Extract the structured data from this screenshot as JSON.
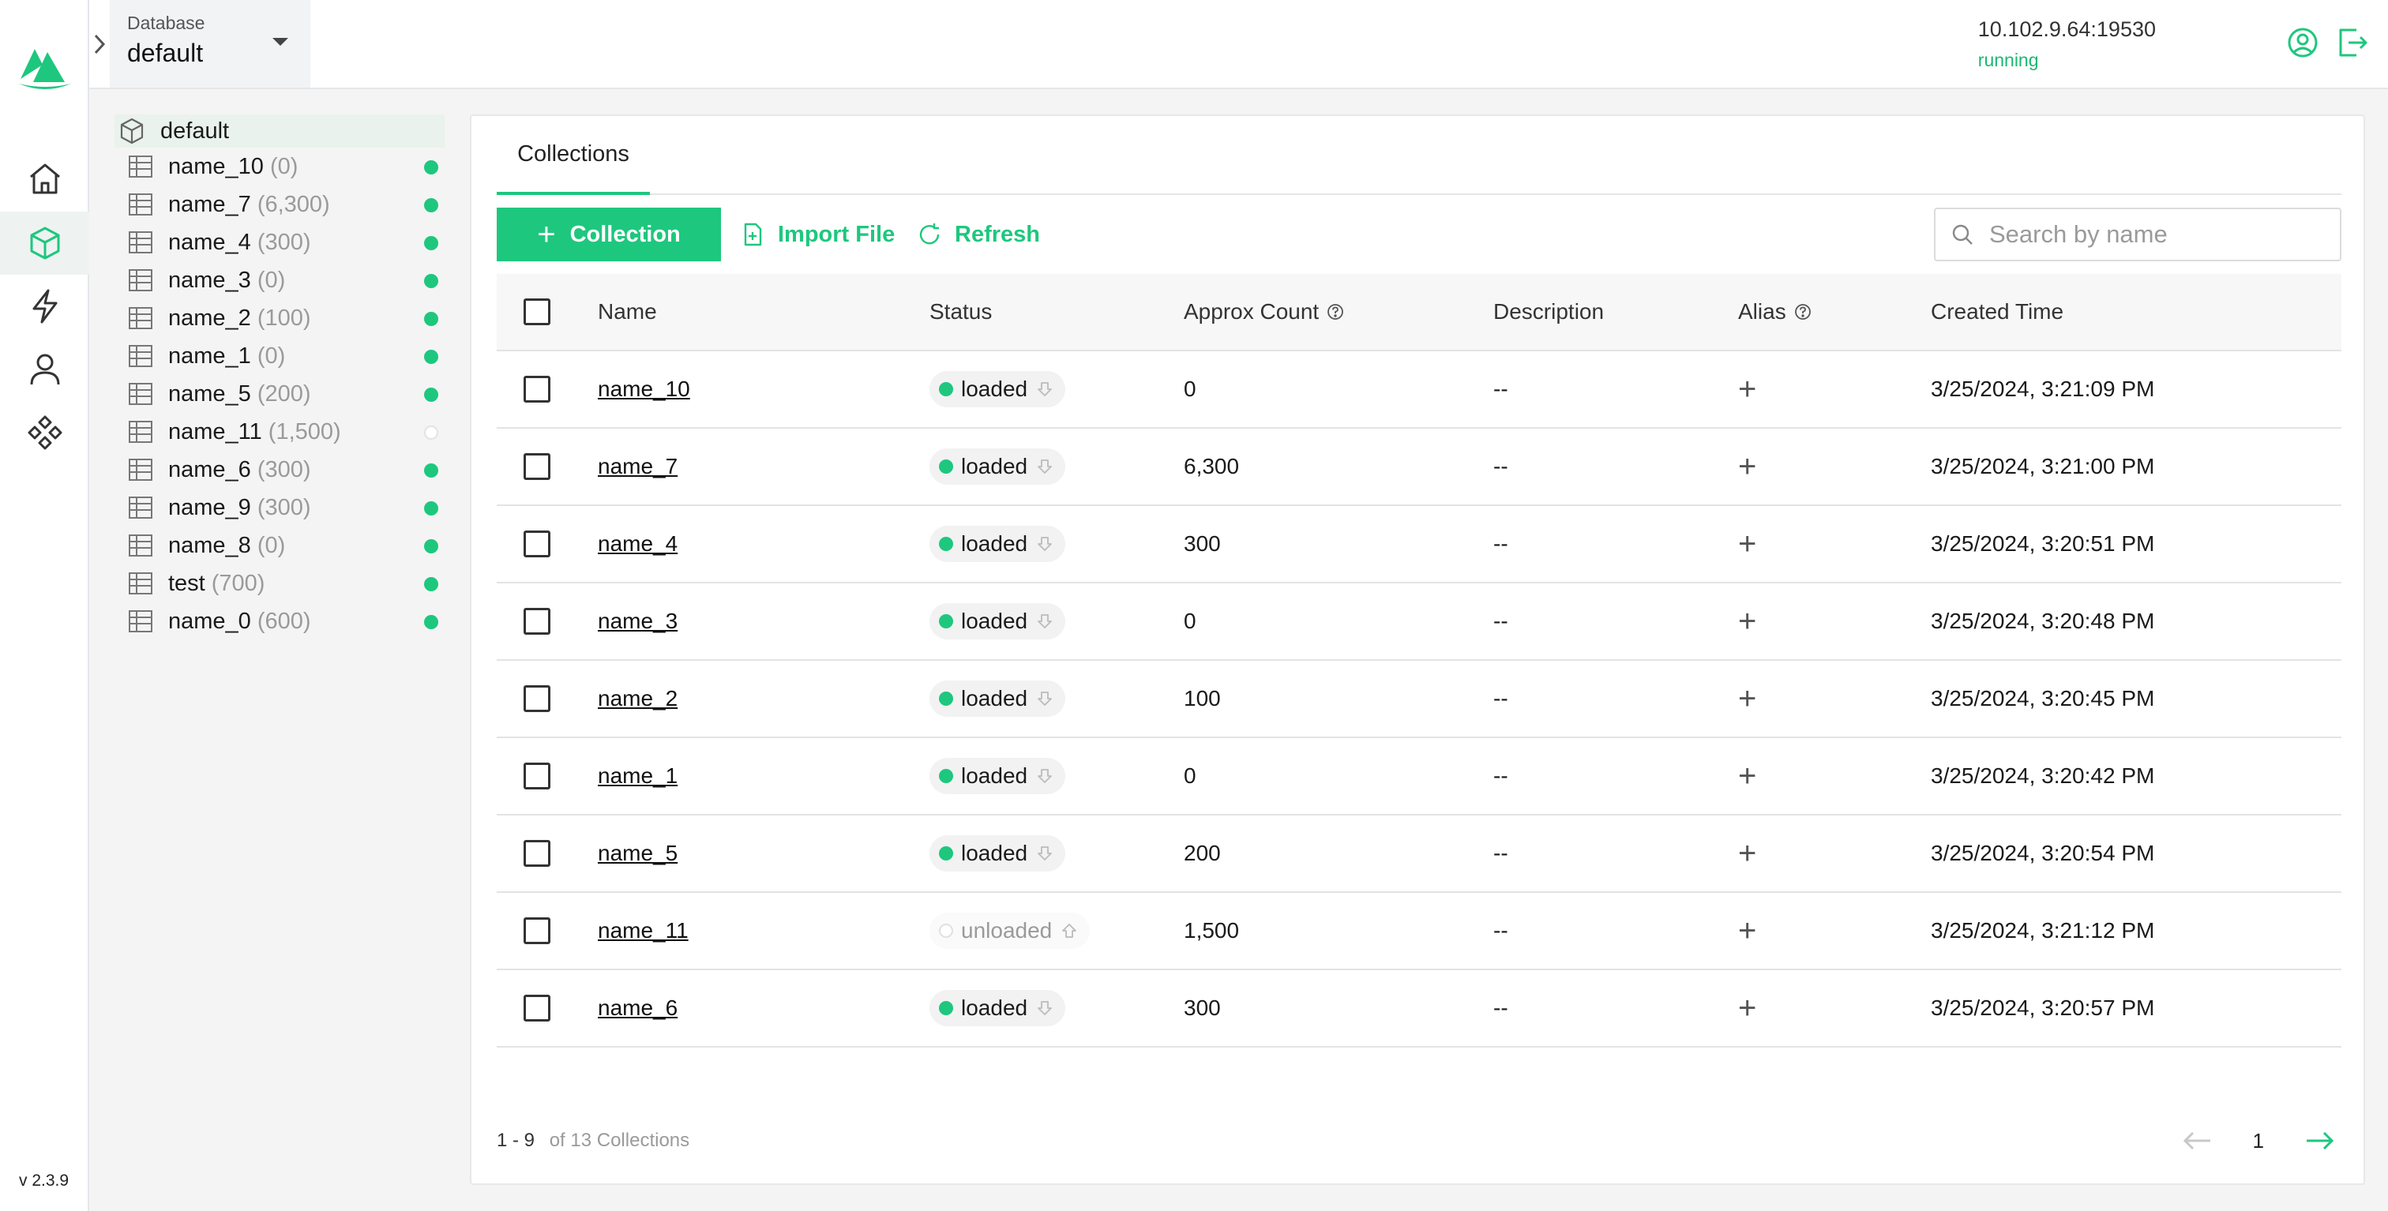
{
  "app": {
    "version": "v 2.3.9",
    "accent": "#1ec77e"
  },
  "nav": {
    "items": [
      {
        "icon": "home-icon",
        "active": false
      },
      {
        "icon": "cube-icon",
        "active": true
      },
      {
        "icon": "lightning-icon",
        "active": false
      },
      {
        "icon": "user-icon",
        "active": false
      },
      {
        "icon": "components-icon",
        "active": false
      }
    ]
  },
  "header": {
    "database_label": "Database",
    "database_value": "default",
    "address": "10.102.9.64:19530",
    "status": "running"
  },
  "tree": {
    "root": "default",
    "items": [
      {
        "name": "name_10",
        "count": "(0)",
        "loaded": true
      },
      {
        "name": "name_7",
        "count": "(6,300)",
        "loaded": true
      },
      {
        "name": "name_4",
        "count": "(300)",
        "loaded": true
      },
      {
        "name": "name_3",
        "count": "(0)",
        "loaded": true
      },
      {
        "name": "name_2",
        "count": "(100)",
        "loaded": true
      },
      {
        "name": "name_1",
        "count": "(0)",
        "loaded": true
      },
      {
        "name": "name_5",
        "count": "(200)",
        "loaded": true
      },
      {
        "name": "name_11",
        "count": "(1,500)",
        "loaded": false
      },
      {
        "name": "name_6",
        "count": "(300)",
        "loaded": true
      },
      {
        "name": "name_9",
        "count": "(300)",
        "loaded": true
      },
      {
        "name": "name_8",
        "count": "(0)",
        "loaded": true
      },
      {
        "name": "test",
        "count": "(700)",
        "loaded": true
      },
      {
        "name": "name_0",
        "count": "(600)",
        "loaded": true
      }
    ]
  },
  "main": {
    "tab": "Collections",
    "toolbar": {
      "create_label": "Collection",
      "import_label": "Import File",
      "refresh_label": "Refresh",
      "search_placeholder": "Search by name"
    },
    "table": {
      "headers": {
        "name": "Name",
        "status": "Status",
        "count": "Approx Count",
        "description": "Description",
        "alias": "Alias",
        "created": "Created Time"
      },
      "rows": [
        {
          "name": "name_10",
          "status": "loaded",
          "count": "0",
          "description": "--",
          "created": "3/25/2024, 3:21:09 PM"
        },
        {
          "name": "name_7",
          "status": "loaded",
          "count": "6,300",
          "description": "--",
          "created": "3/25/2024, 3:21:00 PM"
        },
        {
          "name": "name_4",
          "status": "loaded",
          "count": "300",
          "description": "--",
          "created": "3/25/2024, 3:20:51 PM"
        },
        {
          "name": "name_3",
          "status": "loaded",
          "count": "0",
          "description": "--",
          "created": "3/25/2024, 3:20:48 PM"
        },
        {
          "name": "name_2",
          "status": "loaded",
          "count": "100",
          "description": "--",
          "created": "3/25/2024, 3:20:45 PM"
        },
        {
          "name": "name_1",
          "status": "loaded",
          "count": "0",
          "description": "--",
          "created": "3/25/2024, 3:20:42 PM"
        },
        {
          "name": "name_5",
          "status": "loaded",
          "count": "200",
          "description": "--",
          "created": "3/25/2024, 3:20:54 PM"
        },
        {
          "name": "name_11",
          "status": "unloaded",
          "count": "1,500",
          "description": "--",
          "created": "3/25/2024, 3:21:12 PM"
        },
        {
          "name": "name_6",
          "status": "loaded",
          "count": "300",
          "description": "--",
          "created": "3/25/2024, 3:20:57 PM"
        }
      ]
    },
    "pagination": {
      "range": "1 - 9",
      "total": "of 13 Collections",
      "page": "1"
    }
  }
}
